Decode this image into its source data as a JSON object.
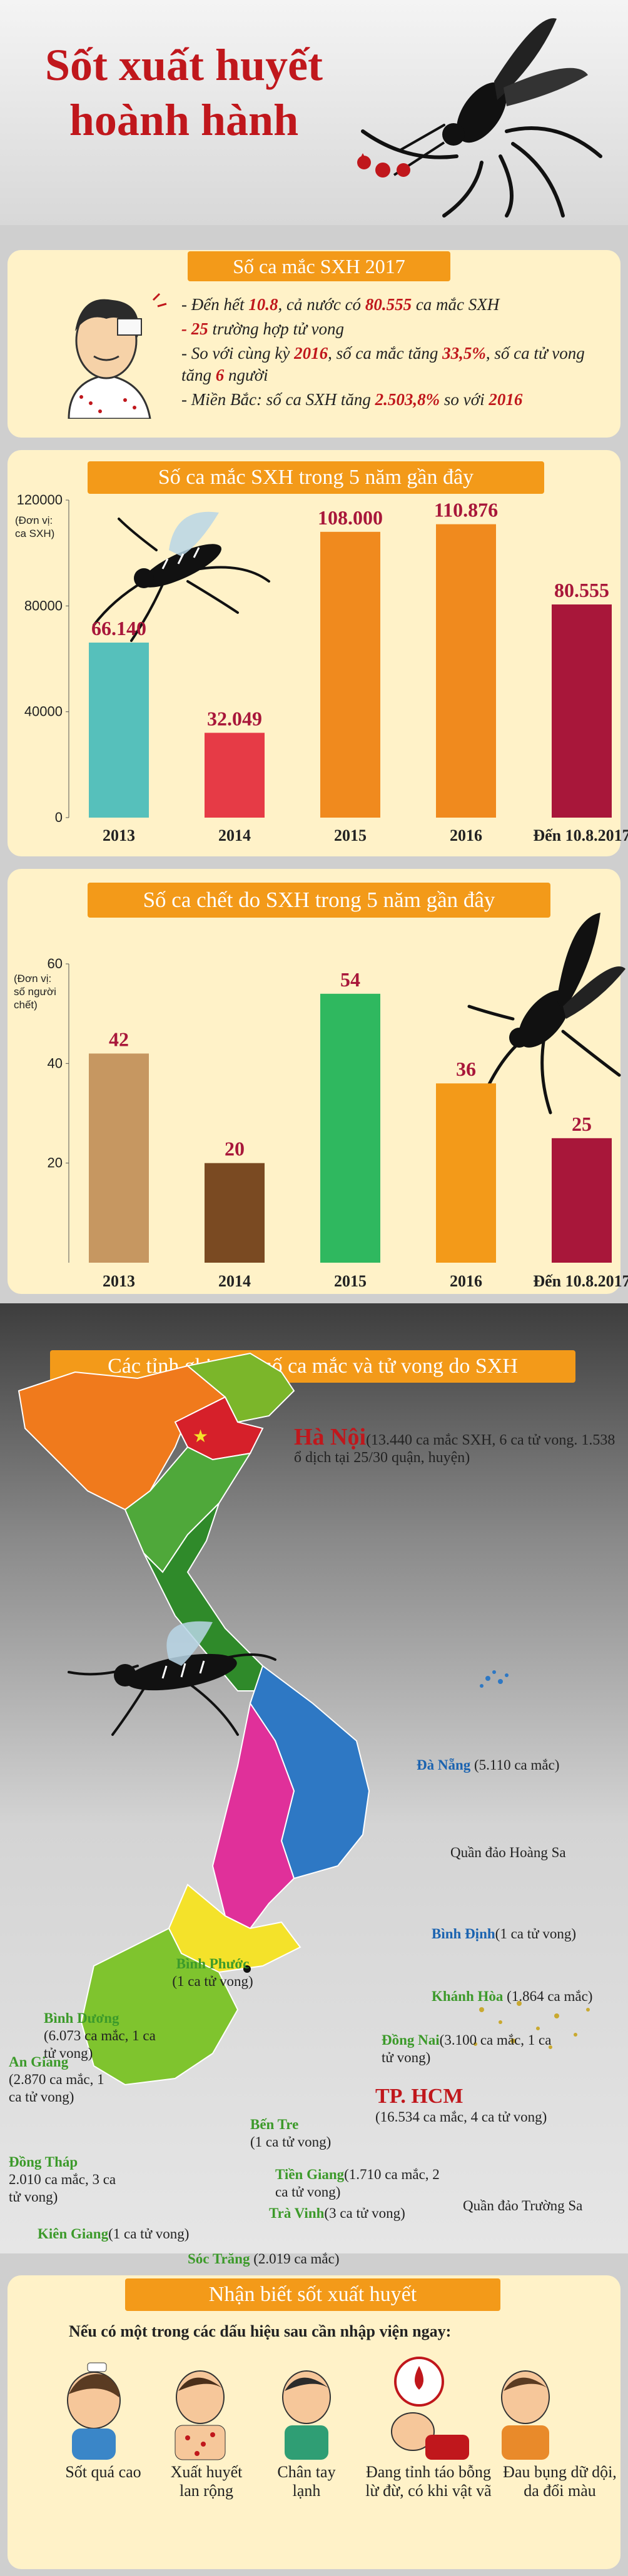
{
  "title": {
    "line1": "Sốt xuất huyết",
    "line2": "hoành hành"
  },
  "stats2017": {
    "heading": "Số ca mắc SXH 2017",
    "b1_pre": "- Đến hết ",
    "b1_date": "10.8",
    "b1_mid": ", cả nước có ",
    "b1_num": "80.555",
    "b1_post": " ca mắc SXH",
    "b2_num": "- 25",
    "b2_post": " trường hợp tử vong",
    "b3_pre": "- So với cùng kỳ ",
    "b3_year": "2016",
    "b3_mid": ", số ca mắc tăng ",
    "b3_pct": "33,5%",
    "b3_mid2": ", số ca tử vong tăng ",
    "b3_num": "6",
    "b3_post": " người",
    "b4_pre": "- Miền Bắc: số ca SXH tăng ",
    "b4_pct": "2.503,8%",
    "b4_mid": " so với ",
    "b4_year": "2016"
  },
  "cases_chart": {
    "heading": "Số ca mắc SXH trong 5 năm gần đây",
    "unit": "(Đơn vị: ca SXH)"
  },
  "deaths_chart": {
    "heading": "Số ca chết do SXH trong 5 năm gần đây",
    "unit": "(Đơn vị: số người chết)"
  },
  "chart_data": [
    {
      "type": "bar",
      "categories": [
        "2013",
        "2014",
        "2015",
        "2016",
        "Đến 10.8.2017"
      ],
      "values": [
        66140,
        32049,
        108000,
        110876,
        80555
      ],
      "value_labels": [
        "66.140",
        "32.049",
        "108.000",
        "110.876",
        "80.555"
      ],
      "yticks": [
        "0",
        "40000",
        "80000",
        "120000"
      ],
      "ylim": [
        0,
        120000
      ],
      "title": "Số ca mắc SXH trong 5 năm gần đây",
      "ylabel": "(Đơn vị: ca SXH)",
      "colors": [
        "#56c0bb",
        "#e63b46",
        "#f08a1e",
        "#f08a1e",
        "#a8173a"
      ]
    },
    {
      "type": "bar",
      "categories": [
        "2013",
        "2014",
        "2015",
        "2016",
        "Đến 10.8.2017"
      ],
      "values": [
        42,
        20,
        54,
        36,
        25
      ],
      "value_labels": [
        "42",
        "20",
        "54",
        "36",
        "25"
      ],
      "yticks": [
        "20",
        "40",
        "60"
      ],
      "ylim": [
        0,
        60
      ],
      "title": "Số ca chết do SXH trong 5 năm gần đây",
      "ylabel": "(Đơn vị: số người chết)",
      "colors": [
        "#c69761",
        "#7a4a22",
        "#2fb85f",
        "#f39a19",
        "#a8173a"
      ]
    }
  ],
  "map": {
    "heading": "Các tỉnh ghi nhận số ca mắc và tử vong do SXH",
    "hanoi_name": "Hà Nội",
    "hanoi_detail": "(13.440 ca mắc SXH, 6 ca tử vong. 1.538 ổ dịch tại 25/30 quận, huyện)",
    "danang_name": "Đà Nẵng",
    "danang_detail": " (5.110 ca mắc)",
    "hoangsa": "Quần đảo Hoàng Sa",
    "binhdinh_name": "Bình Định",
    "binhdinh_detail": "(1 ca tử vong)",
    "khanhhoa_name": "Khánh Hòa",
    "khanhhoa_detail": "(1.864 ca mắc)",
    "binhphuoc_name": "Bình Phước",
    "binhphuoc_detail": "(1 ca tử vong)",
    "binhduong_name": "Bình Dương",
    "binhduong_detail": "(6.073 ca mắc, 1 ca tử vong)",
    "dongnai_name": "Đồng Nai",
    "dongnai_detail": "(3.100 ca mắc, 1 ca tử vong)",
    "hcm_name": "TP. HCM",
    "hcm_detail": "(16.534 ca mắc, 4 ca tử vong)",
    "angiang_name": "An Giang",
    "angiang_detail": "(2.870 ca mắc, 1 ca tử vong)",
    "bentre_name": "Bến Tre",
    "bentre_detail": "(1 ca tử vong)",
    "dongthap_name": "Đồng Tháp",
    "dongthap_detail": "2.010 ca mắc, 3 ca tử vong)",
    "tiengiang_name": "Tiền Giang",
    "tiengiang_detail": "(1.710 ca mắc, 2 ca tử vong)",
    "travinh_name": "Trà Vinh",
    "travinh_detail": "(3 ca tử vong)",
    "kiengiang_name": "Kiên Giang",
    "kiengiang_detail": "(1 ca tử vong)",
    "soctrang_name": "Sóc Trăng",
    "soctrang_detail": "(2.019 ca mắc)",
    "truongsa": "Quần đảo Trường Sa"
  },
  "symptoms": {
    "heading": "Nhận biết sốt xuất huyết",
    "intro": "Nếu có một trong các dấu hiệu sau cần nhập viện ngay:",
    "items": [
      "Sốt quá cao",
      "Xuất huyết lan rộng",
      "Chân tay lạnh",
      "Đang tỉnh táo bỗng lừ đừ, có khi vật vã",
      "Đau bụng dữ dội, da đổi màu"
    ]
  }
}
